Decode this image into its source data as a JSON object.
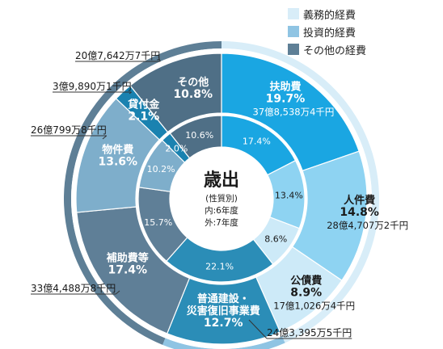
{
  "legend": [
    {
      "label": "義務的経費",
      "color": "#d8edf8"
    },
    {
      "label": "投資的経費",
      "color": "#8fc4e3"
    },
    {
      "label": "その他の経費",
      "color": "#5e7f96"
    }
  ],
  "center": {
    "title": "歳出",
    "sub1": "(性質別)",
    "sub2": "内:6年度",
    "sub3": "外:7年度"
  },
  "chart_data": {
    "type": "pie",
    "outer_ring": [
      {
        "key": "fujo",
        "title": "扶助費",
        "percent": 19.7,
        "amount": "37億8,538万4千円",
        "color": "#1aa6e2",
        "text_color": "#ffffff"
      },
      {
        "key": "jinken",
        "title": "人件費",
        "percent": 14.8,
        "amount": "28億4,707万2千円",
        "color": "#8ed3f2",
        "text_color": "#1a1a1a"
      },
      {
        "key": "kosai",
        "title": "公債費",
        "percent": 8.9,
        "amount": "17億1,026万4千円",
        "color": "#cdeaf8",
        "text_color": "#1a1a1a"
      },
      {
        "key": "futsu",
        "title": "普通建設・\n災害復旧事業費",
        "percent": 12.7,
        "amount": "24億3,395万5千円",
        "color": "#2b8db7",
        "text_color": "#ffffff"
      },
      {
        "key": "hojo",
        "title": "補助費等",
        "percent": 17.4,
        "amount": "33億4,488万8千円",
        "color": "#5f7f97",
        "text_color": "#ffffff"
      },
      {
        "key": "buken",
        "title": "物件費",
        "percent": 13.6,
        "amount": "26億799万8千円",
        "color": "#7eaecb",
        "text_color": "#ffffff"
      },
      {
        "key": "kashitsuke",
        "title": "貸付金",
        "percent": 2.1,
        "amount": "3億9,890万1千円",
        "color": "#1a82b0",
        "text_color": "#ffffff"
      },
      {
        "key": "sonota",
        "title": "その他",
        "percent": 10.8,
        "amount": "20億7,642万7千円",
        "color": "#4f6f86",
        "text_color": "#ffffff"
      }
    ],
    "inner_ring": [
      {
        "key": "fujo",
        "percent": 17.4,
        "color": "#1aa6e2"
      },
      {
        "key": "jinken",
        "percent": 13.4,
        "color": "#8ed3f2"
      },
      {
        "key": "kosai",
        "percent": 8.6,
        "color": "#cdeaf8"
      },
      {
        "key": "futsu",
        "percent": 22.1,
        "color": "#2b8db7"
      },
      {
        "key": "hojo",
        "percent": 15.7,
        "color": "#5f7f97"
      },
      {
        "key": "buken",
        "percent": 10.2,
        "color": "#7eaecb"
      },
      {
        "key": "kashitsuke",
        "percent": 2.0,
        "color": "#1a82b0"
      },
      {
        "key": "sonota",
        "percent": 10.6,
        "color": "#4f6f86"
      }
    ],
    "category_band": [
      {
        "category": "義務的経費",
        "percent": 43.4,
        "color": "#d8edf8"
      },
      {
        "category": "投資的経費",
        "percent": 12.7,
        "color": "#8fc4e3"
      },
      {
        "category": "その他の経費",
        "percent": 43.9,
        "color": "#5e7f96"
      }
    ]
  }
}
